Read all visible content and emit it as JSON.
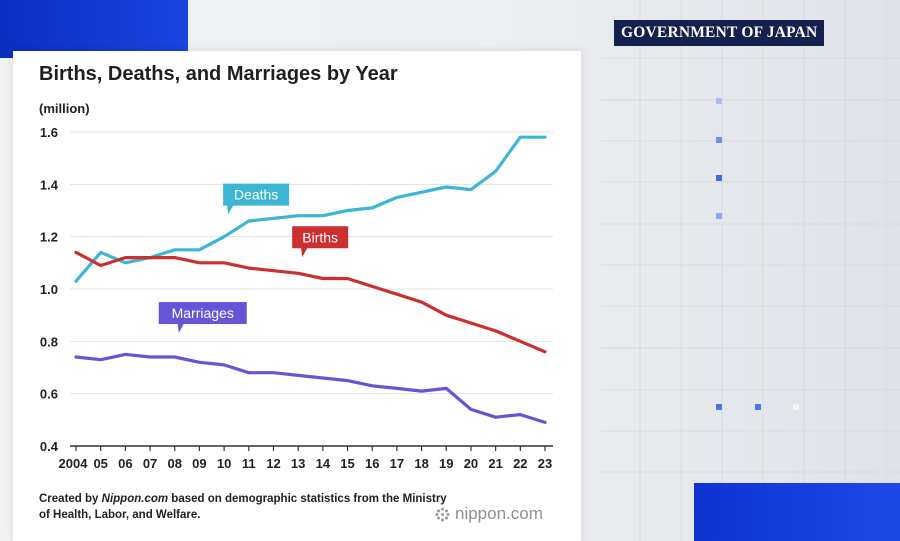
{
  "badge": {
    "text": "GOVERNMENT OF JAPAN"
  },
  "chart_data": {
    "type": "line",
    "title": "Births, Deaths, and Marriages by Year",
    "unit_label": "(million)",
    "xlabel": "",
    "ylabel": "",
    "categories": [
      "2004",
      "05",
      "06",
      "07",
      "08",
      "09",
      "10",
      "11",
      "12",
      "13",
      "14",
      "15",
      "16",
      "17",
      "18",
      "19",
      "20",
      "21",
      "22",
      "23"
    ],
    "ylim": [
      0.4,
      1.6
    ],
    "yticks": [
      "0.4",
      "0.6",
      "0.8",
      "1.0",
      "1.2",
      "1.4",
      "1.6"
    ],
    "grid": true,
    "series": [
      {
        "name": "Deaths",
        "color": "#3db6d6",
        "values": [
          1.03,
          1.14,
          1.1,
          1.12,
          1.15,
          1.15,
          1.2,
          1.26,
          1.27,
          1.28,
          1.28,
          1.3,
          1.31,
          1.35,
          1.37,
          1.39,
          1.38,
          1.45,
          1.58,
          1.58
        ]
      },
      {
        "name": "Births",
        "color": "#cc2f2f",
        "values": [
          1.14,
          1.09,
          1.12,
          1.12,
          1.12,
          1.1,
          1.1,
          1.08,
          1.07,
          1.06,
          1.04,
          1.04,
          1.01,
          0.98,
          0.95,
          0.9,
          0.87,
          0.84,
          0.8,
          0.76
        ]
      },
      {
        "name": "Marriages",
        "color": "#6655d8",
        "values": [
          0.74,
          0.73,
          0.75,
          0.74,
          0.74,
          0.72,
          0.71,
          0.68,
          0.68,
          0.67,
          0.66,
          0.65,
          0.63,
          0.62,
          0.61,
          0.62,
          0.54,
          0.51,
          0.52,
          0.49
        ]
      }
    ]
  },
  "footnote": {
    "prefix": "Created by ",
    "source_name": "Nippon.com",
    "suffix": " based on demographic statistics from the Ministry of Health, Labor, and Welfare."
  },
  "brand": {
    "text": "nippon.com",
    "icon": "nippon-logo-icon"
  },
  "colors": {
    "accent_blue": "#1a44e0",
    "badge_bg": "#14204d",
    "deco_blue": "#5b82ee"
  }
}
